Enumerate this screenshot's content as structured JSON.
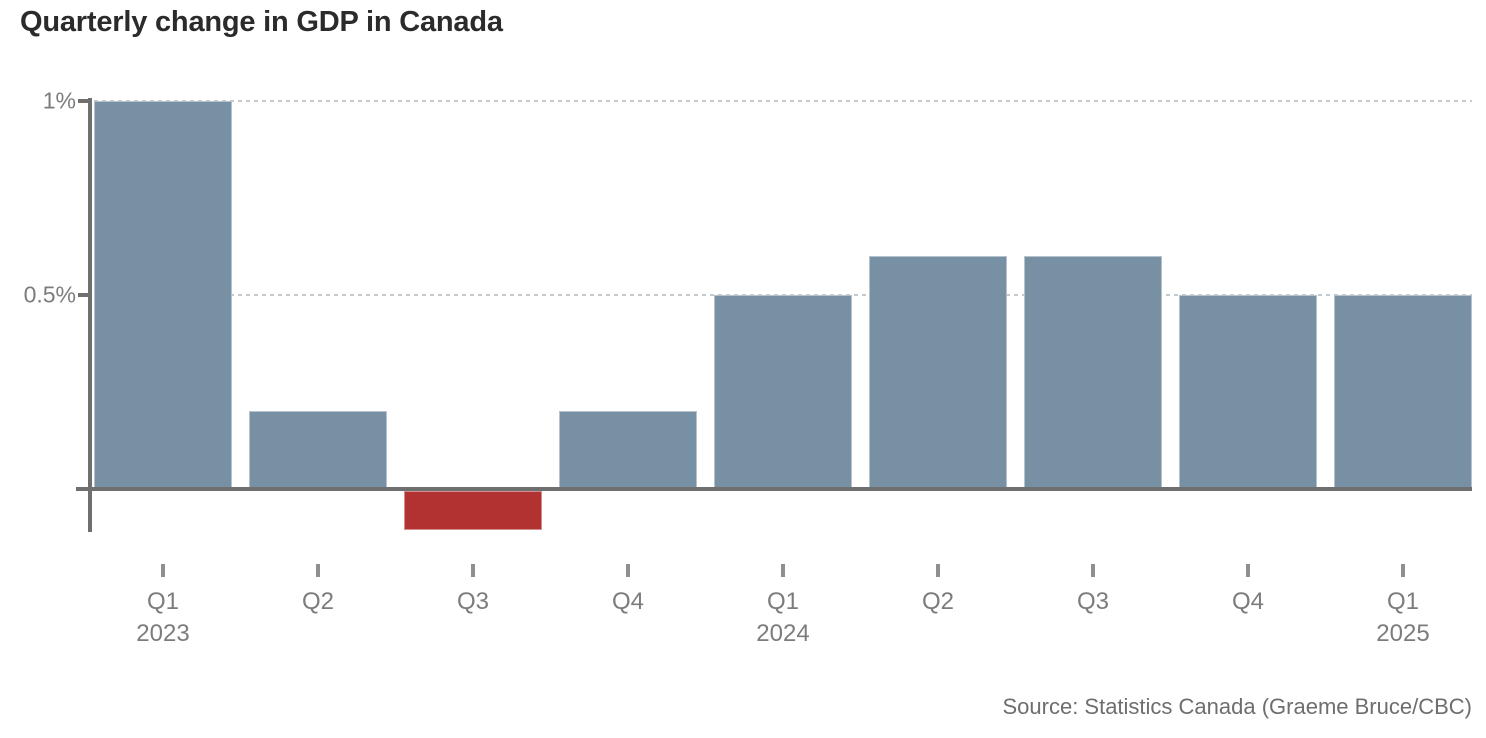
{
  "title": "Quarterly change in GDP in Canada",
  "source": "Source: Statistics Canada (Graeme Bruce/CBC)",
  "colors": {
    "positive_bar": "#7890a3",
    "negative_bar": "#b23232",
    "axis": "#6f6f6f",
    "gridline": "#c5cacd",
    "tick_label": "#7c7c7c",
    "title_text": "#2b2b2b",
    "source_text": "#6e6e6e"
  },
  "chart_data": {
    "type": "bar",
    "title": "Quarterly change in GDP in Canada",
    "categories": [
      "Q1 2023",
      "Q2 2023",
      "Q3 2023",
      "Q4 2023",
      "Q1 2024",
      "Q2 2024",
      "Q3 2024",
      "Q4 2024",
      "Q1 2025"
    ],
    "values": [
      1.0,
      0.2,
      -0.1,
      0.2,
      0.5,
      0.6,
      0.6,
      0.5,
      0.5
    ],
    "unit": "%",
    "xlabel": "",
    "ylabel": "",
    "ylim": [
      -0.15,
      1.05
    ],
    "grid": "horizontal dotted gridlines at labeled y ticks",
    "legend": "none",
    "y_ticks": [
      {
        "value": 1,
        "label": "1%"
      },
      {
        "value": 0.5,
        "label": "0.5%"
      }
    ],
    "x_tick_labels": [
      {
        "quarter": "Q1",
        "year": "2023"
      },
      {
        "quarter": "Q2",
        "year": ""
      },
      {
        "quarter": "Q3",
        "year": ""
      },
      {
        "quarter": "Q4",
        "year": ""
      },
      {
        "quarter": "Q1",
        "year": "2024"
      },
      {
        "quarter": "Q2",
        "year": ""
      },
      {
        "quarter": "Q3",
        "year": ""
      },
      {
        "quarter": "Q4",
        "year": ""
      },
      {
        "quarter": "Q1",
        "year": "2025"
      }
    ]
  }
}
